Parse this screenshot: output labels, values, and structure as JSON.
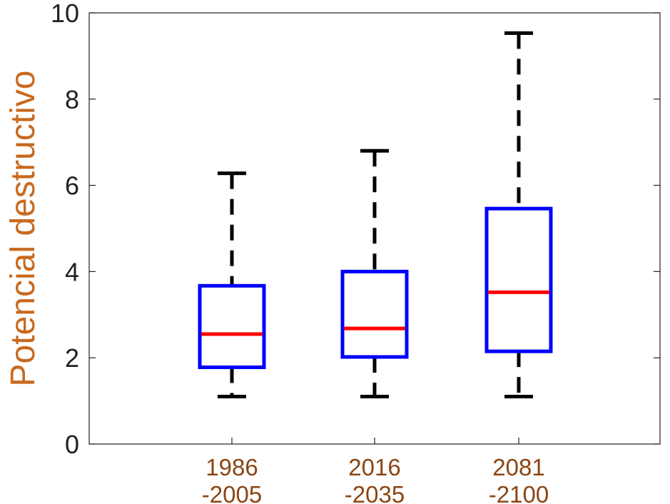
{
  "chart_data": {
    "type": "box",
    "ylabel": "Potencial destructivo",
    "xlabel": "",
    "title": "",
    "ylim": [
      0,
      10
    ],
    "yticks": [
      0,
      2,
      4,
      6,
      8,
      10
    ],
    "grid": false,
    "categories": [
      {
        "line1": "1986",
        "line2": "-2005"
      },
      {
        "line1": "2016",
        "line2": "-2035"
      },
      {
        "line1": "2081",
        "line2": "-2100"
      }
    ],
    "boxes": [
      {
        "whisker_low": 1.1,
        "q1": 1.78,
        "median": 2.55,
        "q3": 3.67,
        "whisker_high": 6.28
      },
      {
        "whisker_low": 1.1,
        "q1": 2.02,
        "median": 2.68,
        "q3": 4.0,
        "whisker_high": 6.8
      },
      {
        "whisker_low": 1.1,
        "q1": 2.15,
        "median": 3.52,
        "q3": 5.46,
        "whisker_high": 9.53
      }
    ],
    "colors": {
      "box": "#0000ff",
      "median": "#ff0000",
      "whisker": "#000000",
      "axis": "#222222",
      "ylabel": "#c8691e",
      "xtick": "#8b4513"
    }
  }
}
